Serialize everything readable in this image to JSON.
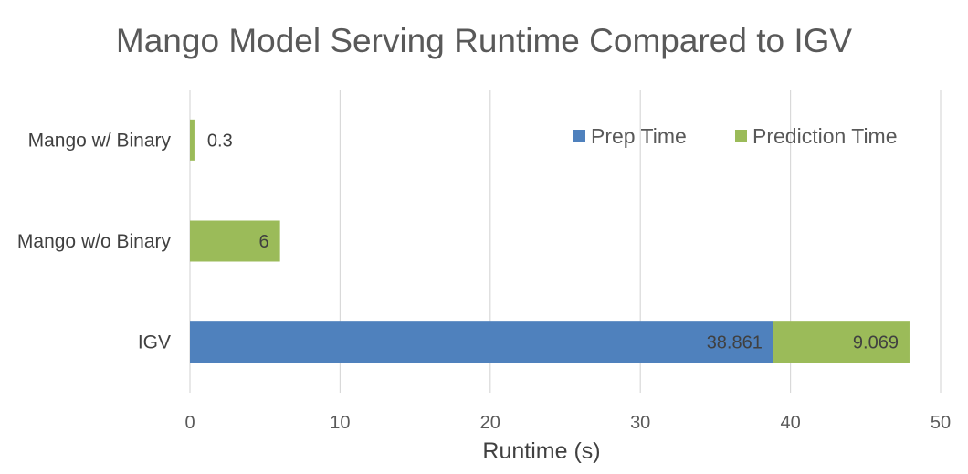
{
  "chart_data": {
    "type": "bar",
    "orientation": "horizontal",
    "stacked": true,
    "title": "Mango Model Serving Runtime Compared to IGV",
    "xlabel": "Runtime (s)",
    "ylabel": "",
    "xlim": [
      0,
      50
    ],
    "x_ticks": [
      "0",
      "10",
      "20",
      "30",
      "40",
      "50"
    ],
    "grid": true,
    "legend_position": "top-right",
    "categories": [
      "IGV",
      "Mango w/o Binary",
      "Mango w/ Binary"
    ],
    "series": [
      {
        "name": "Prep Time",
        "color": "#4f81bd",
        "values": [
          38.861,
          0,
          0
        ],
        "labels": [
          "38.861",
          "",
          ""
        ]
      },
      {
        "name": "Prediction Time",
        "color": "#9bbb59",
        "values": [
          9.069,
          6,
          0.3
        ],
        "labels": [
          "9.069",
          "6",
          "0.3"
        ]
      }
    ]
  }
}
